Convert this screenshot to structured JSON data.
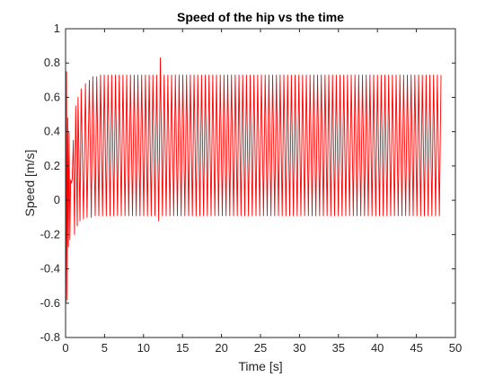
{
  "chart_data": {
    "type": "line",
    "title": "Speed of the hip vs the time",
    "xlabel": "Time [s]",
    "ylabel": "Speed [m/s]",
    "xlim": [
      0,
      50
    ],
    "ylim": [
      -0.8,
      1
    ],
    "xticks": [
      0,
      5,
      10,
      15,
      20,
      25,
      30,
      35,
      40,
      45,
      50
    ],
    "yticks": [
      -0.8,
      -0.6,
      -0.4,
      -0.2,
      0,
      0.2,
      0.4,
      0.6,
      0.8,
      1
    ],
    "xtick_labels": [
      "0",
      "5",
      "10",
      "15",
      "20",
      "25",
      "30",
      "35",
      "40",
      "45",
      "50"
    ],
    "ytick_labels": [
      "-0.8",
      "-0.6",
      "-0.4",
      "-0.2",
      "0",
      "0.2",
      "0.4",
      "0.6",
      "0.8",
      "1"
    ],
    "grid": false,
    "box": true,
    "colors": {
      "line": "#ff0000",
      "axes": "#262626",
      "background": "#ffffff"
    },
    "series": [
      {
        "values_description_free": true,
        "x": [
          0,
          0.05,
          0.12,
          0.2,
          0.28,
          0.36,
          0.45,
          0.55,
          0.65,
          0.75,
          0.85,
          1.0,
          1.15,
          1.3,
          1.5,
          1.6,
          1.85,
          2.0,
          2.3,
          2.55,
          2.75,
          3.05,
          3.3,
          3.5,
          3.8,
          4.0
        ],
        "y": [
          0.0,
          -0.6,
          0.75,
          -0.58,
          0.48,
          -0.27,
          0.4,
          -0.23,
          0.12,
          0.1,
          0.12,
          0.35,
          -0.2,
          0.55,
          -0.15,
          0.6,
          -0.12,
          0.65,
          -0.11,
          0.68,
          -0.1,
          0.7,
          -0.1,
          0.72,
          -0.09,
          0.72
        ],
        "cycle": {
          "t_start": 4.0,
          "t_end": 48.5,
          "period": 0.48,
          "peak": 0.73,
          "trough": -0.09
        },
        "spike": {
          "x": 12.0,
          "peak": 0.83,
          "trough": -0.12
        }
      }
    ]
  }
}
